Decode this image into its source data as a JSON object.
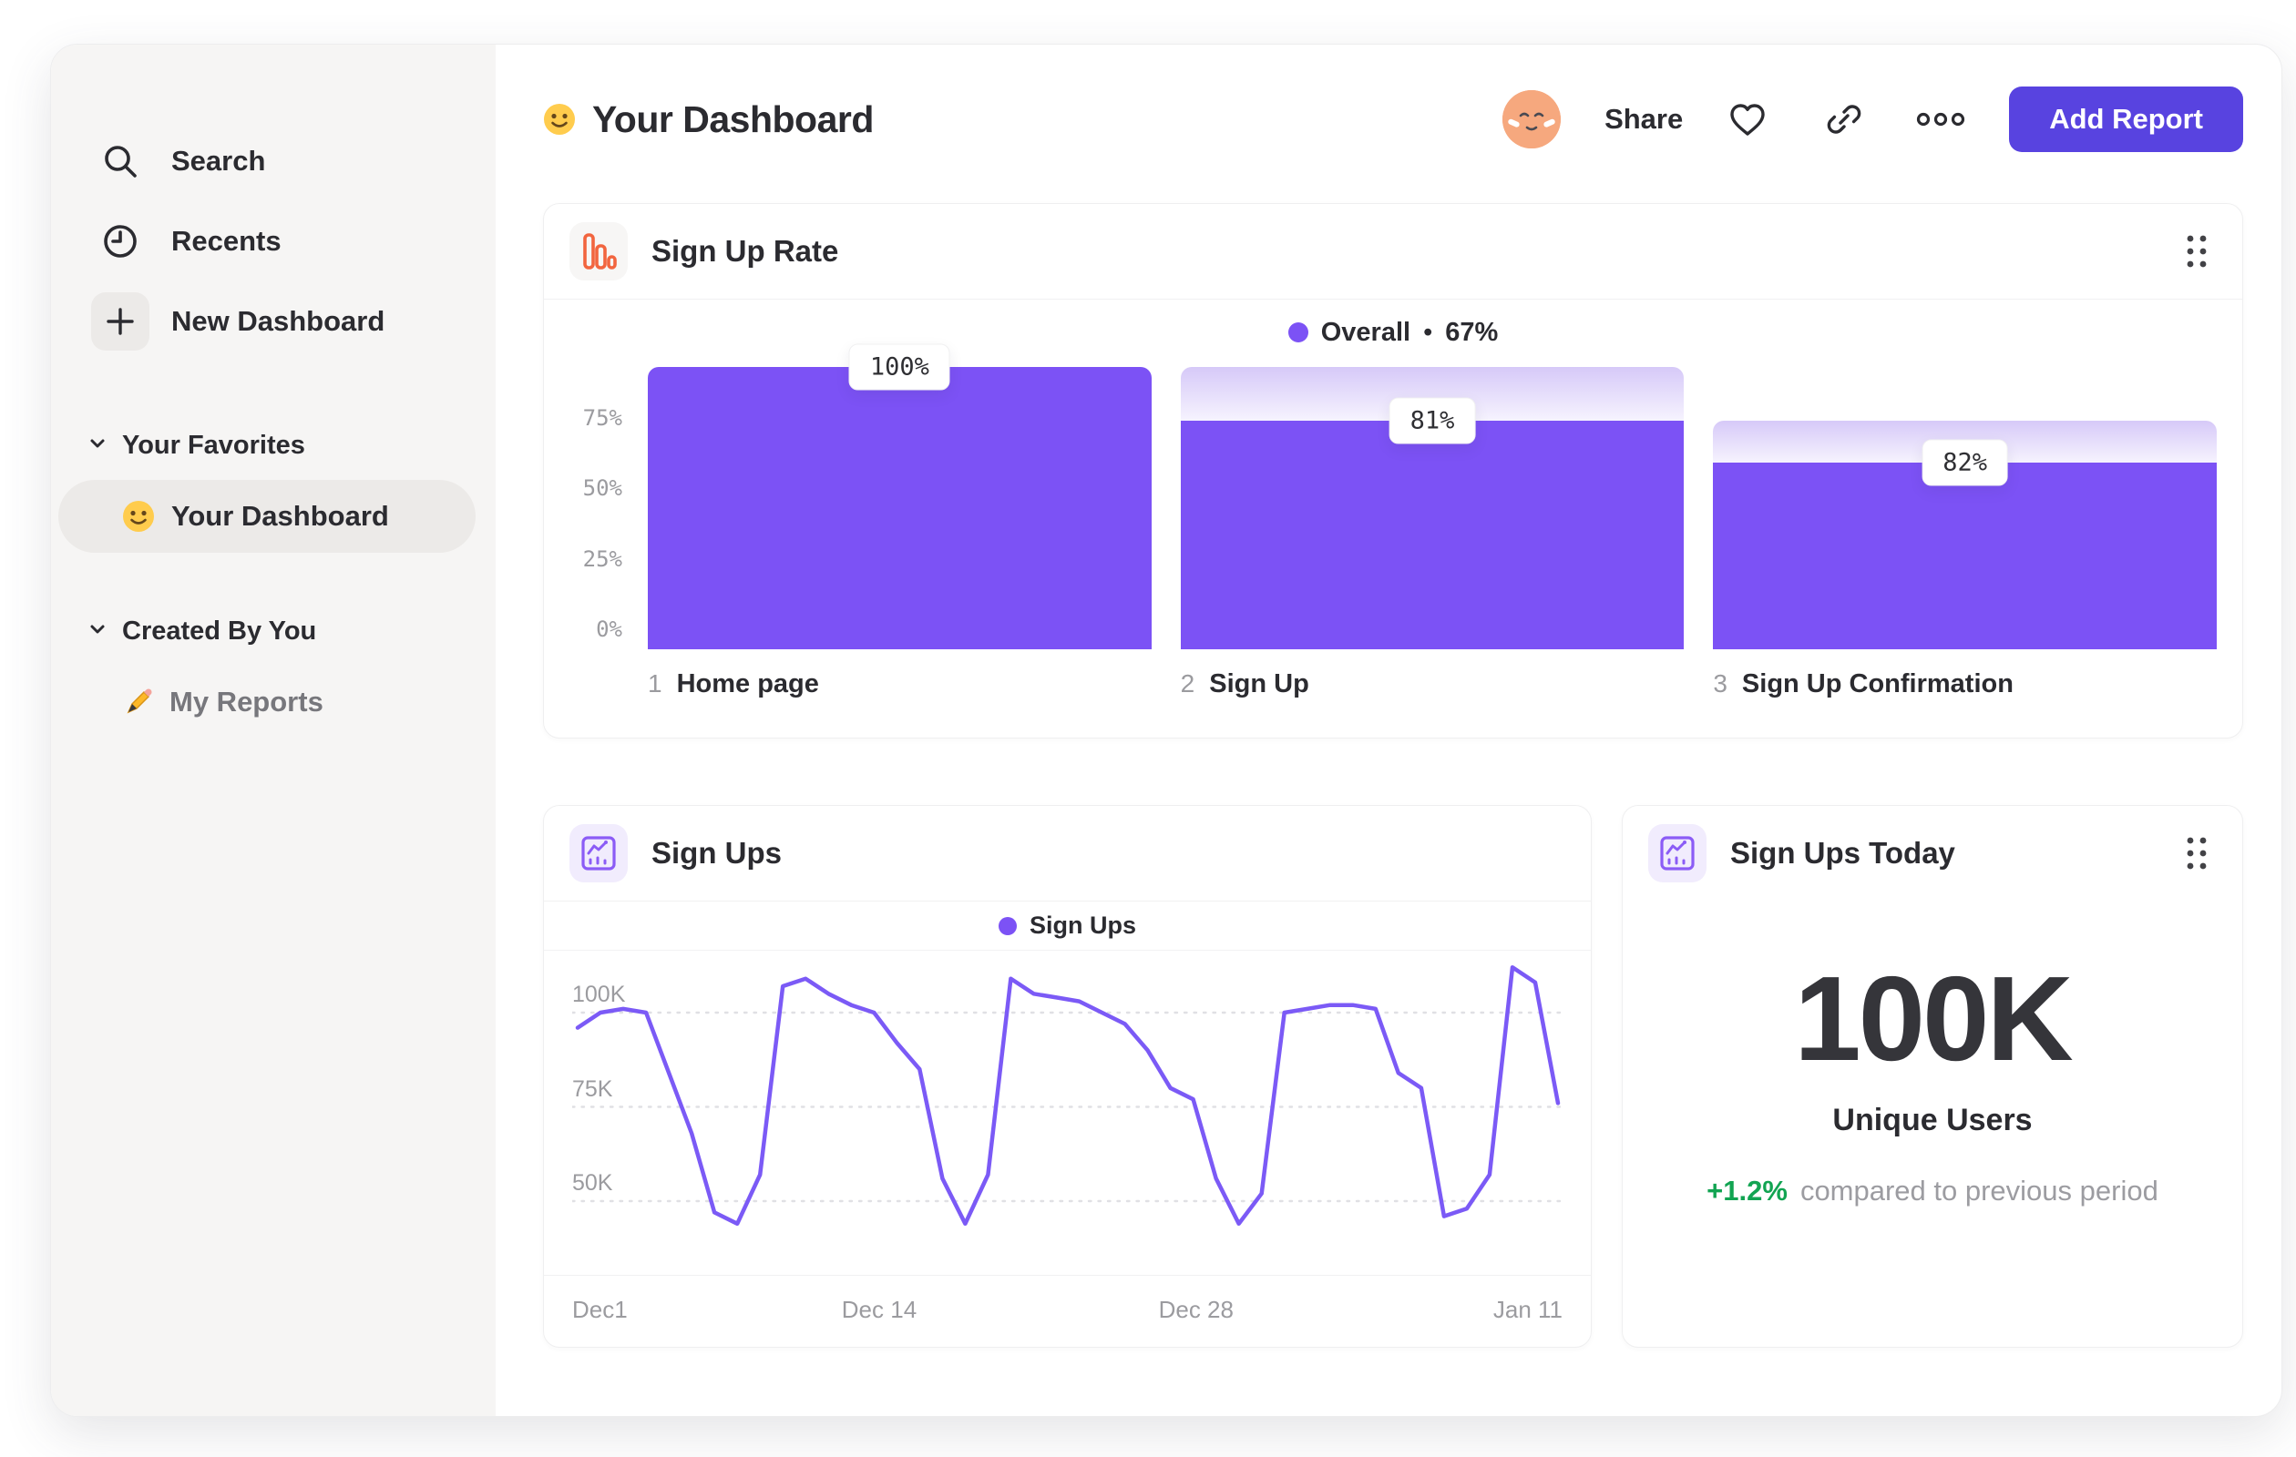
{
  "sidebar": {
    "nav": [
      {
        "icon": "search-icon",
        "label": "Search"
      },
      {
        "icon": "clock-icon",
        "label": "Recents"
      },
      {
        "icon": "plus-icon",
        "label": "New Dashboard"
      }
    ],
    "sections": [
      {
        "title": "Your Favorites",
        "items": [
          {
            "emoji": "smiley-face",
            "label": "Your Dashboard",
            "active": true
          }
        ]
      },
      {
        "title": "Created By You",
        "items": [
          {
            "emoji": "pencil",
            "label": "My Reports",
            "active": false
          }
        ]
      }
    ]
  },
  "header": {
    "emoji": "smiley-face",
    "title": "Your Dashboard",
    "share_label": "Share",
    "add_report_label": "Add Report"
  },
  "cards": {
    "signup_rate": {
      "title": "Sign Up Rate",
      "legend": {
        "label": "Overall",
        "sep": "•",
        "value": "67%"
      }
    },
    "sign_ups": {
      "title": "Sign Ups",
      "legend_label": "Sign Ups"
    },
    "sign_ups_today": {
      "title": "Sign Ups Today",
      "value": "100K",
      "label": "Unique Users",
      "delta": "+1.2%",
      "delta_note": "compared to previous period"
    }
  },
  "chart_data": [
    {
      "type": "bar",
      "subtype": "funnel",
      "title": "Sign Up Rate",
      "legend": {
        "label": "Overall",
        "overall_pct": 67
      },
      "ylim": [
        0,
        100
      ],
      "y_ticks": [
        "75%",
        "50%",
        "25%",
        "0%"
      ],
      "steps": [
        {
          "index": "1",
          "label": "Home page",
          "conversion_label": "100%",
          "conversion_pct": 100,
          "cumulative_pct": 100,
          "container_pct": 100
        },
        {
          "index": "2",
          "label": "Sign Up",
          "conversion_label": "81%",
          "conversion_pct": 81,
          "cumulative_pct": 81,
          "container_pct": 100
        },
        {
          "index": "3",
          "label": "Sign Up Confirmation",
          "conversion_label": "82%",
          "conversion_pct": 82,
          "cumulative_pct": 66,
          "container_pct": 81
        }
      ]
    },
    {
      "type": "line",
      "title": "Sign Ups",
      "series_name": "Sign Ups",
      "x_ticks": [
        "Dec1",
        "Dec 14",
        "Dec 28",
        "Jan 11"
      ],
      "x_tick_positions": [
        0,
        0.31,
        0.63,
        1
      ],
      "y_ticks": [
        {
          "label": "100K",
          "value": 100
        },
        {
          "label": "75K",
          "value": 75
        },
        {
          "label": "50K",
          "value": 50
        }
      ],
      "unit": "K",
      "values_K": [
        96,
        100,
        101,
        100,
        84,
        68,
        47,
        44,
        57,
        107,
        109,
        105,
        102,
        100,
        92,
        85,
        56,
        44,
        57,
        109,
        105,
        104,
        103,
        100,
        97,
        90,
        80,
        77,
        56,
        44,
        52,
        100,
        101,
        102,
        102,
        101,
        84,
        80,
        46,
        48,
        57,
        112,
        108,
        76
      ]
    },
    {
      "type": "stat",
      "title": "Sign Ups Today",
      "value": "100K",
      "label": "Unique Users",
      "change": "+1.2%",
      "comparison": "compared to previous period"
    }
  ],
  "colors": {
    "accent_purple": "#7c52f5",
    "line_purple": "#7b5af6",
    "button_purple": "#5843e0",
    "funnel_gradient_top": "#d6c9f8",
    "funnel_gradient_bottom": "#f6f3fe",
    "green_positive": "#12a452",
    "orange_icon": "#f2653f",
    "sidebar_bg": "#f6f5f4",
    "axis_gray": "#9b9b9f"
  }
}
